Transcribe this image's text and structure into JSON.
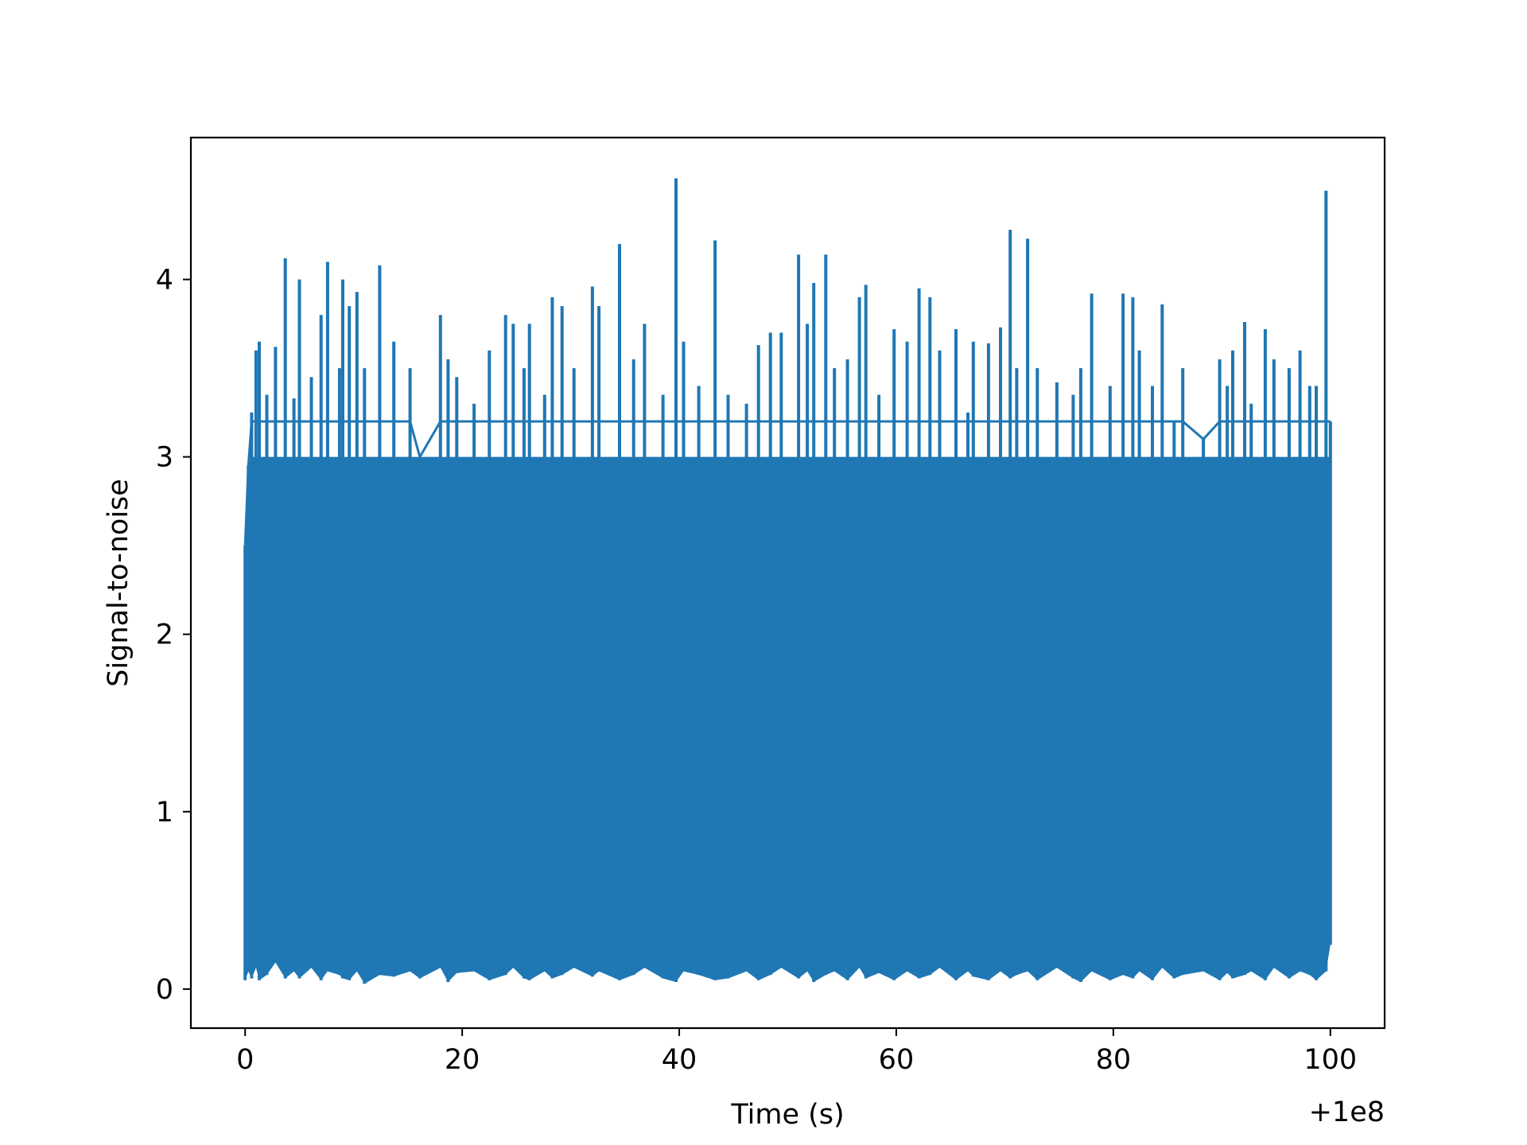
{
  "chart_data": {
    "type": "line",
    "title": "",
    "xlabel": "Time (s)",
    "ylabel": "Signal-to-noise",
    "x_offset_label": "+1e8",
    "xlim": [
      -5,
      105
    ],
    "ylim": [
      -0.22,
      4.8
    ],
    "xticks": [
      0,
      20,
      40,
      60,
      80,
      100
    ],
    "yticks": [
      0,
      1,
      2,
      3,
      4
    ],
    "grid": false,
    "legend": "none",
    "series": [
      {
        "color": "#1f77b4",
        "envelope": {
          "x": [
            0,
            0.3,
            0.6,
            1.0,
            1.3,
            2.0,
            2.8,
            3.7,
            4.5,
            5.0,
            6.1,
            7.0,
            7.6,
            8.7,
            9.0,
            9.6,
            10.3,
            11.0,
            12.4,
            13.7,
            15.2,
            16.1,
            18.0,
            18.7,
            19.5,
            21.1,
            22.5,
            24.0,
            24.7,
            25.7,
            26.2,
            27.6,
            28.3,
            29.2,
            30.3,
            32.0,
            32.6,
            34.5,
            35.8,
            36.8,
            38.5,
            39.7,
            40.4,
            41.8,
            43.3,
            44.5,
            46.2,
            47.3,
            48.4,
            49.4,
            51.0,
            51.8,
            52.4,
            53.5,
            54.3,
            55.5,
            56.6,
            57.2,
            58.4,
            59.8,
            61.0,
            62.1,
            63.1,
            64.0,
            65.5,
            66.6,
            67.1,
            68.5,
            69.6,
            70.5,
            71.1,
            72.1,
            73.0,
            74.8,
            76.3,
            77.0,
            78.0,
            79.7,
            80.9,
            81.8,
            82.4,
            83.6,
            84.5,
            85.6,
            86.4,
            88.3,
            89.8,
            90.5,
            91.0,
            92.1,
            92.7,
            94.0,
            94.8,
            96.2,
            97.2,
            98.1,
            98.7,
            99.6,
            100.0
          ],
          "y_max": [
            2.5,
            2.95,
            3.25,
            3.6,
            3.65,
            3.35,
            3.62,
            4.12,
            3.33,
            4.0,
            3.45,
            3.8,
            4.1,
            3.5,
            4.0,
            3.85,
            3.93,
            3.5,
            4.08,
            3.65,
            3.5,
            3.0,
            3.8,
            3.55,
            3.45,
            3.3,
            3.6,
            3.8,
            3.75,
            3.5,
            3.75,
            3.35,
            3.9,
            3.85,
            3.5,
            3.96,
            3.85,
            4.2,
            3.55,
            3.75,
            3.35,
            4.57,
            3.65,
            3.4,
            4.22,
            3.35,
            3.3,
            3.63,
            3.7,
            3.7,
            4.14,
            3.75,
            3.98,
            4.14,
            3.5,
            3.55,
            3.9,
            3.97,
            3.35,
            3.72,
            3.65,
            3.95,
            3.9,
            3.6,
            3.72,
            3.25,
            3.65,
            3.64,
            3.73,
            4.28,
            3.5,
            4.23,
            3.5,
            3.42,
            3.35,
            3.5,
            3.92,
            3.4,
            3.92,
            3.9,
            3.6,
            3.4,
            3.86,
            3.2,
            3.5,
            3.1,
            3.55,
            3.4,
            3.6,
            3.76,
            3.3,
            3.72,
            3.55,
            3.5,
            3.6,
            3.4,
            3.4,
            4.5,
            3.2
          ],
          "y_min": [
            0.05,
            0.1,
            0.06,
            0.12,
            0.05,
            0.08,
            0.15,
            0.06,
            0.1,
            0.06,
            0.12,
            0.05,
            0.1,
            0.08,
            0.06,
            0.05,
            0.1,
            0.03,
            0.08,
            0.07,
            0.1,
            0.06,
            0.12,
            0.04,
            0.09,
            0.1,
            0.05,
            0.08,
            0.12,
            0.06,
            0.05,
            0.1,
            0.06,
            0.08,
            0.12,
            0.07,
            0.1,
            0.05,
            0.08,
            0.12,
            0.06,
            0.04,
            0.1,
            0.08,
            0.05,
            0.06,
            0.1,
            0.05,
            0.08,
            0.12,
            0.06,
            0.1,
            0.04,
            0.08,
            0.1,
            0.05,
            0.12,
            0.06,
            0.09,
            0.05,
            0.1,
            0.06,
            0.08,
            0.12,
            0.05,
            0.1,
            0.07,
            0.05,
            0.1,
            0.06,
            0.08,
            0.1,
            0.05,
            0.12,
            0.06,
            0.04,
            0.1,
            0.05,
            0.08,
            0.06,
            0.1,
            0.05,
            0.12,
            0.06,
            0.08,
            0.1,
            0.05,
            0.09,
            0.06,
            0.08,
            0.1,
            0.05,
            0.12,
            0.06,
            0.1,
            0.08,
            0.05,
            0.1,
            0.25
          ]
        }
      }
    ]
  }
}
